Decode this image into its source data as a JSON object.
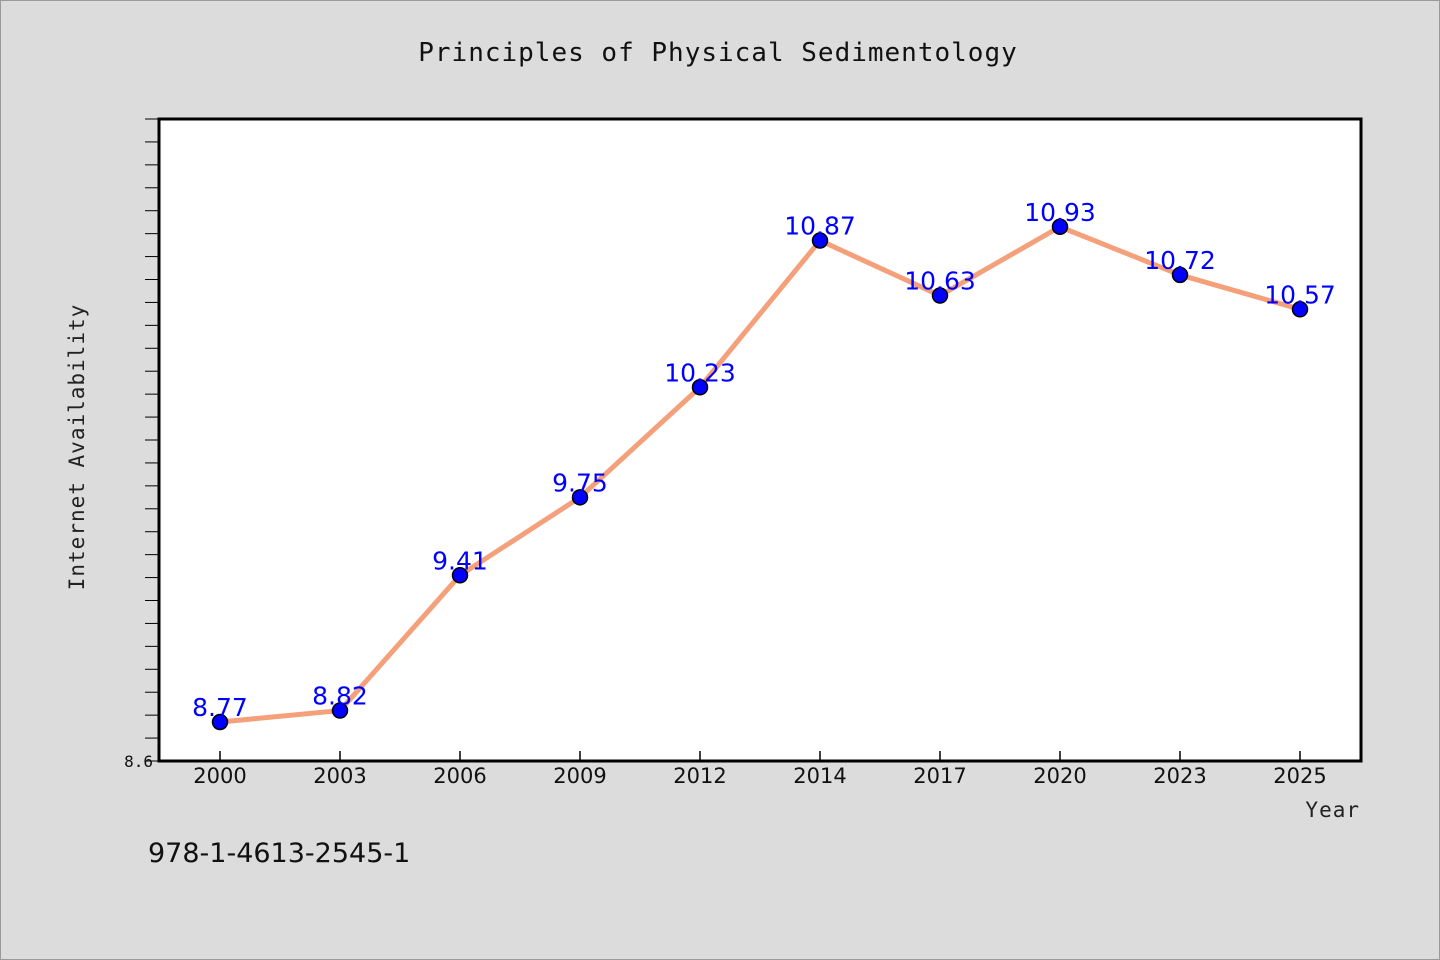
{
  "chart_data": {
    "type": "line",
    "title": "Principles of Physical Sedimentology",
    "xlabel": "Year",
    "ylabel": "Internet Availability",
    "categories": [
      "2000",
      "2003",
      "2006",
      "2009",
      "2012",
      "2014",
      "2017",
      "2020",
      "2023",
      "2025"
    ],
    "series": [
      {
        "values": [
          8.77,
          8.82,
          9.41,
          9.75,
          10.23,
          10.87,
          10.63,
          10.93,
          10.72,
          10.57
        ]
      }
    ],
    "data_labels": [
      "8.77",
      "8.82",
      "9.41",
      "9.75",
      "10.23",
      "10.87",
      "10.63",
      "10.93",
      "10.72",
      "10.57"
    ],
    "ylim": [
      8.6,
      11.4
    ],
    "yticks": [
      "8.6"
    ],
    "y_minor_tick_step": 0.1,
    "grid": false,
    "line_color": "#f4a07a",
    "marker_color": "#0000ff",
    "label_color": "#0000ff"
  },
  "annotation": "978-1-4613-2545-1"
}
